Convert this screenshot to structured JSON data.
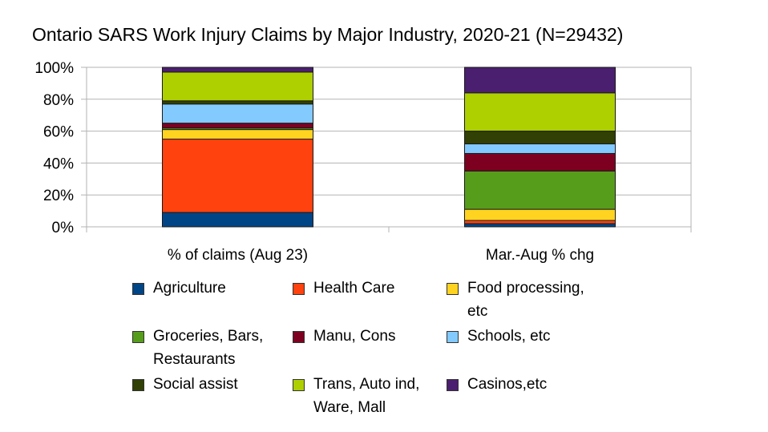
{
  "chart_data": {
    "type": "bar",
    "stacked": true,
    "title": "Ontario SARS Work Injury Claims by Major Industry, 2020-21 (N=29432)",
    "categories": [
      "% of claims (Aug 23)",
      "Mar.-Aug % chg"
    ],
    "ylim": [
      0,
      100
    ],
    "yticks": [
      "0%",
      "20%",
      "40%",
      "60%",
      "80%",
      "100%"
    ],
    "grid": true,
    "legend_position": "bottom",
    "series": [
      {
        "name": "Agriculture",
        "color": "#004586",
        "values": [
          9,
          2
        ]
      },
      {
        "name": "Health Care",
        "color": "#ff420e",
        "values": [
          46,
          2
        ]
      },
      {
        "name": "Food processing,\netc",
        "color": "#ffd320",
        "values": [
          6,
          7
        ]
      },
      {
        "name": "Groceries, Bars,\nRestaurants",
        "color": "#579d1c",
        "values": [
          1,
          24
        ]
      },
      {
        "name": "Manu, Cons",
        "color": "#7e0021",
        "values": [
          3,
          11
        ]
      },
      {
        "name": "Schools, etc",
        "color": "#83caff",
        "values": [
          12,
          6
        ]
      },
      {
        "name": "Social assist",
        "color": "#314004",
        "values": [
          2,
          8
        ]
      },
      {
        "name": "Trans, Auto ind,\nWare, Mall",
        "color": "#aecf00",
        "values": [
          18,
          24
        ]
      },
      {
        "name": "Casinos,etc",
        "color": "#4b1f6f",
        "values": [
          3,
          16
        ]
      }
    ]
  }
}
